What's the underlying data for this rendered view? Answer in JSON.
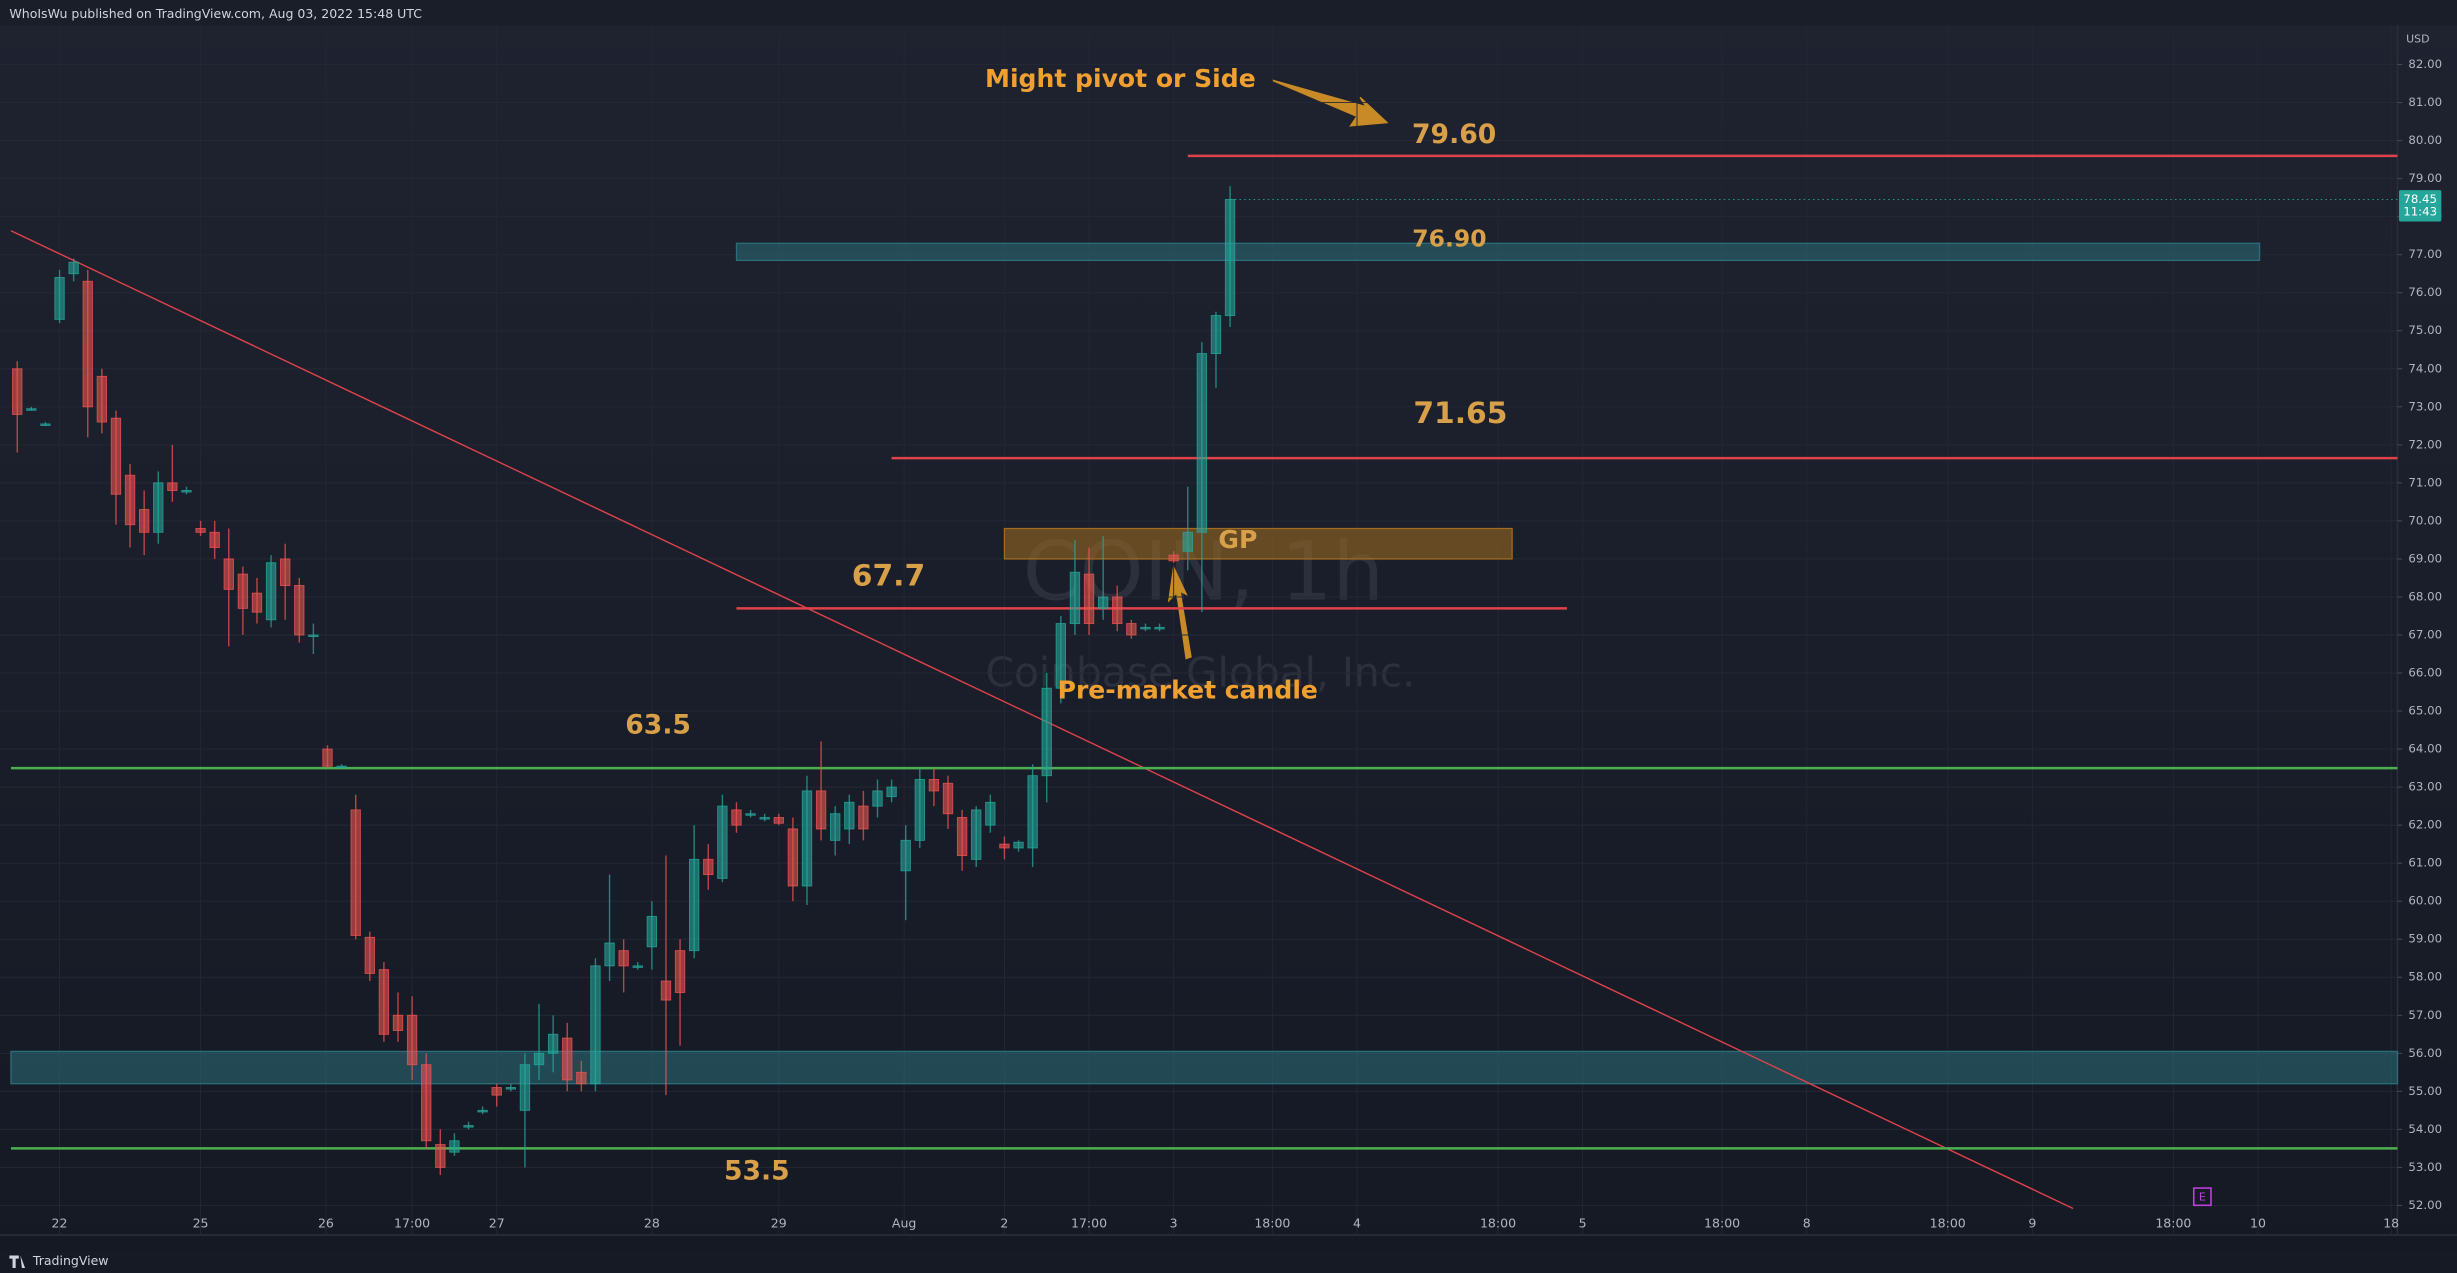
{
  "chart_data": {
    "type": "candlestick",
    "header": "WhoIsWu published on TradingView.com, Aug 03, 2022 15:48 UTC",
    "footer": "TradingView",
    "currency": "USD",
    "watermark_symbol": "COIN, 1h",
    "watermark_name": "Coinbase Global, Inc.",
    "earnings_marker": "E",
    "up_color": "#26a69a",
    "down_color": "#ef5350",
    "grid": true,
    "ylim": [
      51.22,
      83.03
    ],
    "yticks": [
      {
        "value": 52,
        "label": "52.00"
      },
      {
        "value": 53,
        "label": "53.00"
      },
      {
        "value": 54,
        "label": "54.00"
      },
      {
        "value": 55,
        "label": "55.00"
      },
      {
        "value": 56,
        "label": "56.00"
      },
      {
        "value": 57,
        "label": "57.00"
      },
      {
        "value": 58,
        "label": "58.00"
      },
      {
        "value": 59,
        "label": "59.00"
      },
      {
        "value": 60,
        "label": "60.00"
      },
      {
        "value": 61,
        "label": "61.00"
      },
      {
        "value": 62,
        "label": "62.00"
      },
      {
        "value": 63,
        "label": "63.00"
      },
      {
        "value": 64,
        "label": "64.00"
      },
      {
        "value": 65,
        "label": "65.00"
      },
      {
        "value": 66,
        "label": "66.00"
      },
      {
        "value": 67,
        "label": "67.00"
      },
      {
        "value": 68,
        "label": "68.00"
      },
      {
        "value": 69,
        "label": "69.00"
      },
      {
        "value": 70,
        "label": "70.00"
      },
      {
        "value": 71,
        "label": "71.00"
      },
      {
        "value": 72,
        "label": "72.00"
      },
      {
        "value": 73,
        "label": "73.00"
      },
      {
        "value": 74,
        "label": "74.00"
      },
      {
        "value": 75,
        "label": "75.00"
      },
      {
        "value": 76,
        "label": "76.00"
      },
      {
        "value": 77,
        "label": "77.00"
      },
      {
        "value": 78,
        "label": "78.00"
      },
      {
        "value": 79,
        "label": "79.00"
      },
      {
        "value": 80,
        "label": "80.00"
      },
      {
        "value": 81,
        "label": "81.00"
      },
      {
        "value": 82,
        "label": "82.00"
      }
    ],
    "x_axis_labels": [
      "22",
      "25",
      "26",
      "17:00",
      "27",
      "28",
      "29",
      "Aug",
      "2",
      "17:00",
      "3",
      "18:00",
      "4",
      "18:00",
      "5",
      "18:00",
      "8",
      "18:00",
      "9",
      "18:00",
      "10",
      "18"
    ],
    "open": [
      74.0,
      72.95,
      72.55,
      75.3,
      76.5,
      76.3,
      73.8,
      72.7,
      71.2,
      70.3,
      69.7,
      71.0,
      70.8,
      69.8,
      69.7,
      69.0,
      68.6,
      68.1,
      67.4,
      69.0,
      68.3,
      67.0,
      64.0,
      63.55,
      62.4,
      59.05,
      58.2,
      57.0,
      57.0,
      55.7,
      53.6,
      53.4,
      54.1,
      54.5,
      55.1,
      55.1,
      54.5,
      55.7,
      56.0,
      56.4,
      55.5,
      55.2,
      58.3,
      58.7,
      58.3,
      58.8,
      57.9,
      58.7,
      58.7,
      61.1,
      60.6,
      62.4,
      62.3,
      62.2,
      62.2,
      61.9,
      60.4,
      62.9,
      61.6,
      61.9,
      62.5,
      62.5,
      62.75,
      60.8,
      61.6,
      63.2,
      63.1,
      62.2,
      61.1,
      62.0,
      61.5,
      61.4,
      61.4,
      63.3,
      65.6,
      67.3,
      68.6,
      67.7,
      68.0,
      67.3,
      67.2,
      67.2,
      69.1,
      69.2,
      69.7,
      74.4,
      75.4
    ],
    "high": [
      74.2,
      73.0,
      72.6,
      76.6,
      76.9,
      76.6,
      74.0,
      72.9,
      71.5,
      70.8,
      71.3,
      72.0,
      70.9,
      70.0,
      70.0,
      69.8,
      68.8,
      68.5,
      69.1,
      69.4,
      68.5,
      67.3,
      64.1,
      63.6,
      62.8,
      59.2,
      58.4,
      57.6,
      57.5,
      56.0,
      54.0,
      53.9,
      54.2,
      54.6,
      55.2,
      55.2,
      56.0,
      57.3,
      57.0,
      56.8,
      55.8,
      58.5,
      60.7,
      59.0,
      58.4,
      60.0,
      61.2,
      59.0,
      62.0,
      61.5,
      62.8,
      62.6,
      62.4,
      62.3,
      62.3,
      62.2,
      63.3,
      64.2,
      62.5,
      62.8,
      62.9,
      63.2,
      63.2,
      62.0,
      63.5,
      63.5,
      63.3,
      62.4,
      62.5,
      62.8,
      61.7,
      61.6,
      63.6,
      66.0,
      67.5,
      69.5,
      69.3,
      69.6,
      68.3,
      67.4,
      67.3,
      67.3,
      69.2,
      70.9,
      74.7,
      75.5,
      78.8
    ],
    "low": [
      71.8,
      72.9,
      72.5,
      75.2,
      76.3,
      72.2,
      72.3,
      69.9,
      69.3,
      69.1,
      69.4,
      70.5,
      70.7,
      69.6,
      69.0,
      66.7,
      67.0,
      67.3,
      67.2,
      67.4,
      66.8,
      66.5,
      63.5,
      63.5,
      59.0,
      57.9,
      56.3,
      56.3,
      55.3,
      53.5,
      52.8,
      53.3,
      54.0,
      54.4,
      54.6,
      55.0,
      53.0,
      55.3,
      55.5,
      55.0,
      55.0,
      55.0,
      57.9,
      57.6,
      58.2,
      58.2,
      54.9,
      56.2,
      58.5,
      60.3,
      60.5,
      61.8,
      62.2,
      62.1,
      62.0,
      60.0,
      59.9,
      61.6,
      61.2,
      61.5,
      61.6,
      62.2,
      62.6,
      59.5,
      61.4,
      62.5,
      61.9,
      60.8,
      60.9,
      61.8,
      61.1,
      61.3,
      60.9,
      62.6,
      65.2,
      67.0,
      67.0,
      67.4,
      67.1,
      66.9,
      67.1,
      67.1,
      68.9,
      68.7,
      67.6,
      73.5,
      75.1
    ],
    "close": [
      72.8,
      72.95,
      72.55,
      76.4,
      76.8,
      73.0,
      72.6,
      70.7,
      69.9,
      69.7,
      71.0,
      70.8,
      70.8,
      69.7,
      69.3,
      68.2,
      67.7,
      67.6,
      68.9,
      68.3,
      67.0,
      67.0,
      63.55,
      63.55,
      59.1,
      58.1,
      56.5,
      56.6,
      55.7,
      53.7,
      53.0,
      53.7,
      54.1,
      54.5,
      54.9,
      55.1,
      55.7,
      56.0,
      56.5,
      55.3,
      55.2,
      58.3,
      58.9,
      58.3,
      58.3,
      59.6,
      57.4,
      57.6,
      61.1,
      60.7,
      62.5,
      62.0,
      62.3,
      62.2,
      62.05,
      60.4,
      62.9,
      61.9,
      62.3,
      62.6,
      61.9,
      62.9,
      63.0,
      61.6,
      63.2,
      62.9,
      62.3,
      61.2,
      62.4,
      62.6,
      61.4,
      61.55,
      63.3,
      65.6,
      67.3,
      68.65,
      67.3,
      68.0,
      67.3,
      67.0,
      67.2,
      67.2,
      68.95,
      69.7,
      74.4,
      75.4,
      78.45
    ],
    "last_price": 78.45,
    "countdown": "11:43",
    "levels": [
      {
        "value": 79.6,
        "label": "79.60",
        "color": "#e0424a"
      },
      {
        "value": 71.65,
        "label": "71.65",
        "color": "#e0424a"
      },
      {
        "value": 67.7,
        "label": "67.7",
        "color": "#e0424a"
      },
      {
        "value": 63.5,
        "label": "63.5",
        "color": "#4caf50"
      },
      {
        "value": 53.5,
        "label": "53.5",
        "color": "#4caf50"
      }
    ],
    "zones": [
      {
        "top": 77.3,
        "bottom": 76.85,
        "label": "76.90",
        "color": "#2b6f7a"
      },
      {
        "top": 56.05,
        "bottom": 55.2,
        "color": "#2b6f7a"
      },
      {
        "top": 69.8,
        "bottom": 69.0,
        "label": "GP",
        "color": "#a36d1f"
      }
    ],
    "trendline": {
      "start": 77.63,
      "end": 51.92,
      "color": "#e0424a"
    },
    "annotations": [
      "Might pivot or Side",
      "Pre-market candle"
    ]
  }
}
